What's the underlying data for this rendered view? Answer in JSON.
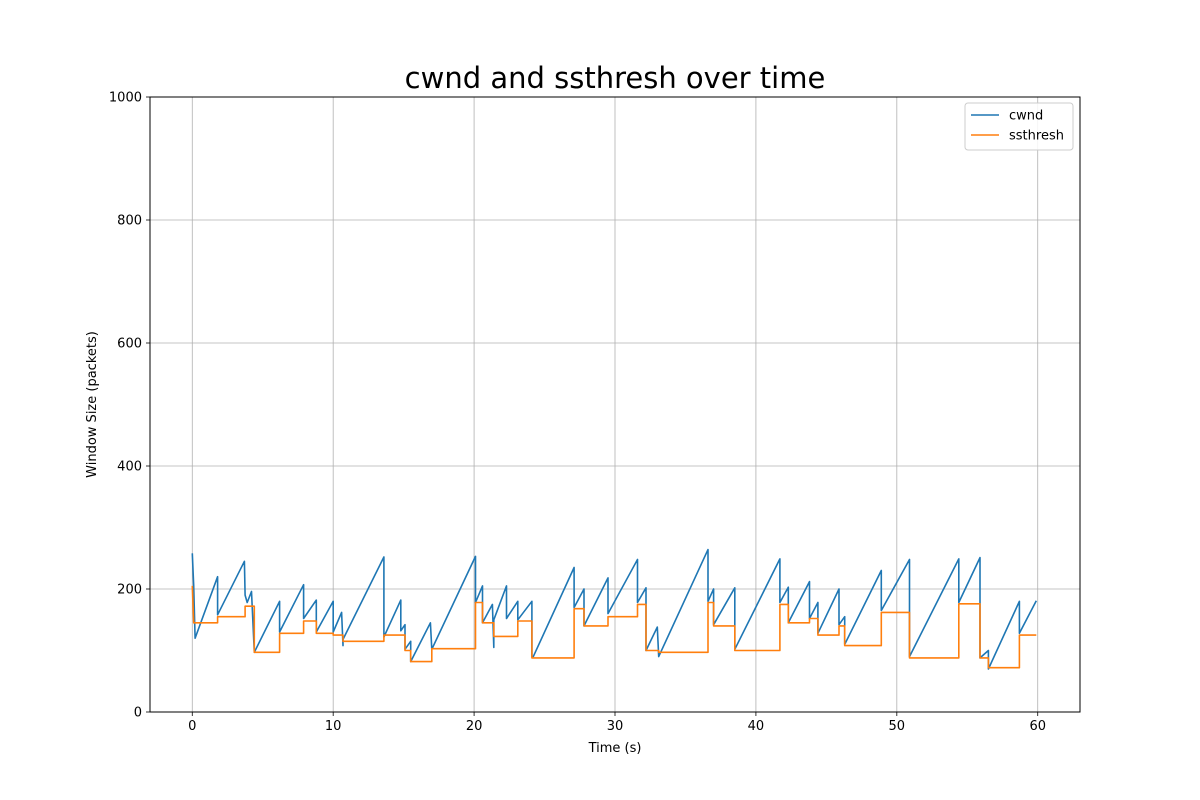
{
  "chart_data": {
    "type": "line",
    "title": "cwnd and ssthresh over time",
    "xlabel": "Time (s)",
    "ylabel": "Window Size (packets)",
    "xlim": [
      -3,
      63
    ],
    "ylim": [
      0,
      1000
    ],
    "xticks": [
      0,
      10,
      20,
      30,
      40,
      50,
      60
    ],
    "yticks": [
      0,
      200,
      400,
      600,
      800,
      1000
    ],
    "grid": true,
    "legend_position": "top-right",
    "series": [
      {
        "name": "cwnd",
        "color": "#1f77b4",
        "x": [
          0,
          0.1,
          0.2,
          1.8,
          1.8,
          3.7,
          3.75,
          3.9,
          4.2,
          4.4,
          6.2,
          6.2,
          7.9,
          7.9,
          8.8,
          8.8,
          10.0,
          10.0,
          10.6,
          10.7,
          10.7,
          13.6,
          13.6,
          14.8,
          14.8,
          15.1,
          15.1,
          15.5,
          15.5,
          16.9,
          17.0,
          20.1,
          20.1,
          20.6,
          20.6,
          21.3,
          21.4,
          21.4,
          22.3,
          22.3,
          23.1,
          23.1,
          24.1,
          24.1,
          24.2,
          27.1,
          27.1,
          27.8,
          27.8,
          29.5,
          29.5,
          31.6,
          31.6,
          32.2,
          32.2,
          33.0,
          33.1,
          36.6,
          36.6,
          37.0,
          37.0,
          38.5,
          38.5,
          41.7,
          41.7,
          42.3,
          42.3,
          43.8,
          43.8,
          44.4,
          44.4,
          45.9,
          45.9,
          46.3,
          46.3,
          48.9,
          48.9,
          50.9,
          50.9,
          54.4,
          54.4,
          55.9,
          55.9,
          56.5,
          56.5,
          58.7,
          58.7,
          59.9
        ],
        "y": [
          258,
          205,
          120,
          220,
          158,
          245,
          190,
          178,
          196,
          97,
          180,
          130,
          207,
          152,
          182,
          130,
          180,
          130,
          162,
          108,
          118,
          252,
          122,
          182,
          132,
          142,
          102,
          115,
          82,
          145,
          102,
          253,
          178,
          205,
          145,
          175,
          105,
          150,
          205,
          152,
          180,
          150,
          180,
          90,
          90,
          235,
          170,
          200,
          140,
          218,
          160,
          248,
          178,
          202,
          100,
          138,
          90,
          264,
          180,
          200,
          142,
          202,
          102,
          249,
          178,
          203,
          145,
          212,
          152,
          178,
          128,
          200,
          142,
          155,
          110,
          230,
          165,
          248,
          90,
          249,
          178,
          251,
          88,
          100,
          70,
          180,
          128,
          181
        ]
      },
      {
        "name": "ssthresh",
        "color": "#ff7f0e",
        "x": [
          0,
          0.1,
          0.2,
          1.8,
          1.8,
          3.75,
          3.75,
          4.4,
          4.4,
          6.2,
          6.2,
          7.9,
          7.9,
          8.8,
          8.8,
          10.0,
          10.0,
          10.7,
          10.7,
          13.6,
          13.6,
          14.8,
          14.8,
          15.1,
          15.1,
          15.5,
          15.5,
          17.0,
          17.0,
          20.1,
          20.1,
          20.6,
          20.6,
          21.4,
          21.4,
          23.1,
          23.1,
          24.1,
          24.1,
          27.1,
          27.1,
          27.8,
          27.8,
          29.5,
          29.5,
          31.6,
          31.6,
          32.2,
          32.2,
          33.1,
          33.1,
          36.6,
          36.6,
          37.0,
          37.0,
          38.5,
          38.5,
          41.7,
          41.7,
          42.3,
          42.3,
          43.8,
          43.8,
          44.4,
          44.4,
          45.9,
          45.9,
          46.3,
          46.3,
          48.9,
          48.9,
          50.9,
          50.9,
          54.4,
          54.4,
          55.9,
          55.9,
          56.5,
          56.5,
          58.7,
          58.7,
          59.9
        ],
        "y": [
          205,
          145,
          145,
          145,
          155,
          155,
          172,
          172,
          97,
          97,
          128,
          128,
          148,
          148,
          128,
          128,
          125,
          125,
          115,
          115,
          125,
          125,
          125,
          125,
          100,
          100,
          82,
          82,
          103,
          103,
          178,
          178,
          145,
          145,
          123,
          123,
          148,
          148,
          88,
          88,
          168,
          168,
          140,
          140,
          155,
          155,
          175,
          175,
          100,
          100,
          97,
          97,
          178,
          178,
          140,
          140,
          100,
          100,
          175,
          175,
          145,
          145,
          152,
          152,
          125,
          125,
          140,
          140,
          108,
          108,
          162,
          162,
          88,
          88,
          176,
          176,
          88,
          88,
          72,
          72,
          125,
          125
        ]
      }
    ]
  }
}
